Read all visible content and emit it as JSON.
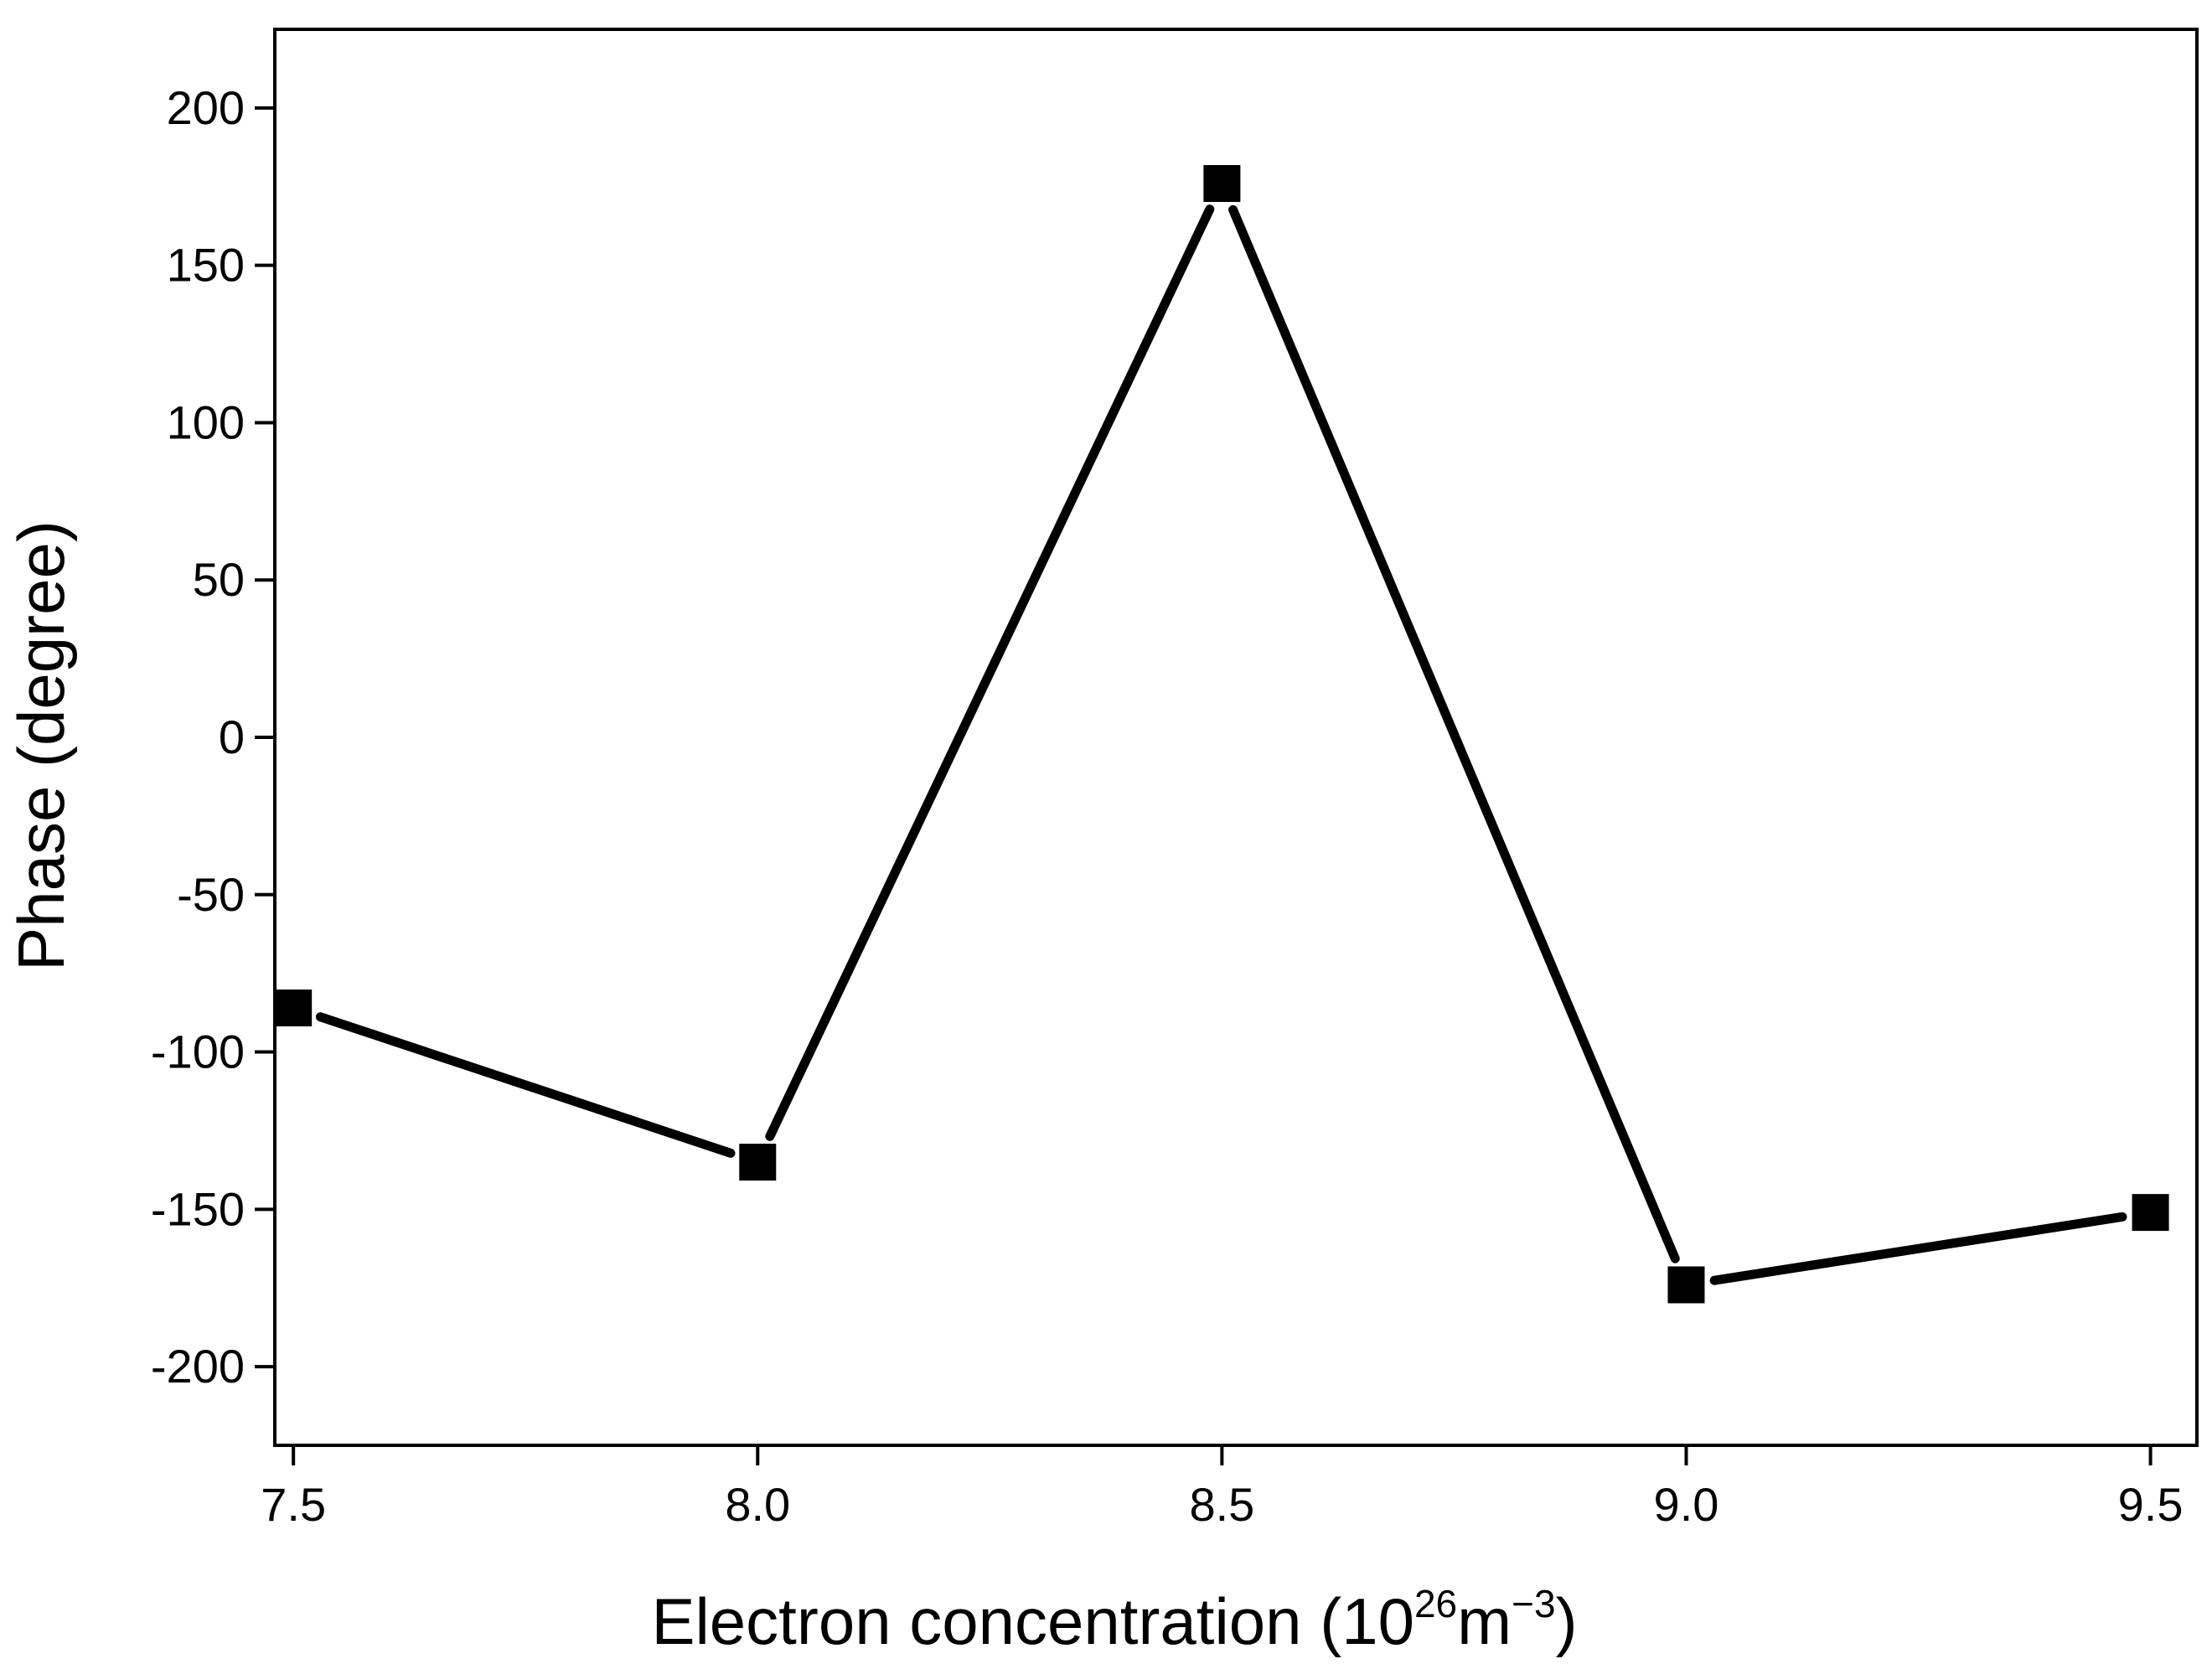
{
  "chart_data": {
    "type": "line",
    "title": "",
    "xlabel": {
      "base": "Electron concentration (10",
      "exp1": "26",
      "mid": "m",
      "exp2": "−3",
      "end": ")"
    },
    "ylabel": "Phase (degree)",
    "xlim": [
      7.48,
      9.55
    ],
    "ylim": [
      -225,
      225
    ],
    "x_ticks": [
      7.5,
      8.0,
      8.5,
      9.0,
      9.5
    ],
    "x_tick_labels": [
      "7.5",
      "8.0",
      "8.5",
      "9.0",
      "9.5"
    ],
    "y_ticks": [
      200,
      150,
      100,
      50,
      0,
      -50,
      -100,
      -150,
      -200
    ],
    "y_tick_labels": [
      "200",
      "150",
      "100",
      "50",
      "0",
      "-50",
      "-100",
      "-150",
      "-200"
    ],
    "grid": false,
    "series": [
      {
        "x": [
          7.5,
          8.0,
          8.5,
          9.0,
          9.5
        ],
        "y": [
          -86,
          -135,
          176,
          -174,
          -151
        ],
        "marker": "square",
        "color": "#000000"
      }
    ]
  }
}
